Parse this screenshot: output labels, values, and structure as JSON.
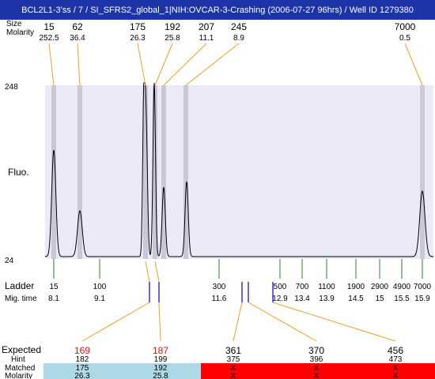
{
  "title": "BCL2L1-3'ss / 7 / SI_SFRS2_global_1|NIH:OVCAR-3-Crashing (2006-07-27 96hrs) / Well ID 1279380",
  "colors": {
    "title_bg": "#1d34a8",
    "plot_bg": "#eceaf8",
    "band": "#c8c8d6",
    "trace": "#000000",
    "orange": "#f0a020",
    "green": "#2e7d32",
    "blue": "#0000cc",
    "red_text": "#e01010",
    "matched_bg": "#add8e6",
    "unmatched_bg": "#ff0000"
  },
  "peak_header": {
    "size_label": "Size",
    "molarity_label": "Molarity",
    "peaks": [
      {
        "size": "15",
        "molarity": "252.5"
      },
      {
        "size": "62",
        "molarity": "36.4"
      },
      {
        "size": "175",
        "molarity": "26.3"
      },
      {
        "size": "192",
        "molarity": "25.8"
      },
      {
        "size": "207",
        "molarity": "11.1"
      },
      {
        "size": "245",
        "molarity": "8.9"
      },
      {
        "size": "7000",
        "molarity": "0.5"
      }
    ]
  },
  "axis": {
    "y_top": "248",
    "y_bottom": "24",
    "y_label": "Fluo."
  },
  "ladder": {
    "label": "Ladder",
    "mig_label": "Mig. time",
    "items": [
      {
        "size": "15",
        "time": "8.1"
      },
      {
        "size": "100",
        "time": "9.1"
      },
      {
        "size": "300",
        "time": "11.6"
      },
      {
        "size": "500",
        "time": "12.9"
      },
      {
        "size": "700",
        "time": "13.4"
      },
      {
        "size": "1100",
        "time": "13.9"
      },
      {
        "size": "1900",
        "time": "14.5"
      },
      {
        "size": "2900",
        "time": "15"
      },
      {
        "size": "4900",
        "time": "15.5"
      },
      {
        "size": "7000",
        "time": "15.9"
      }
    ]
  },
  "expected": {
    "label": "Expected",
    "hint_label": "Hint",
    "matched_label": "Matched",
    "molarity_label": "Molarity",
    "items": [
      {
        "expected": "169",
        "hint": "182",
        "matched": "175",
        "molarity": "26.3",
        "is_matched": true
      },
      {
        "expected": "187",
        "hint": "199",
        "matched": "192",
        "molarity": "25.8",
        "is_matched": true
      },
      {
        "expected": "361",
        "hint": "375",
        "matched": "X",
        "molarity": "X",
        "is_matched": false
      },
      {
        "expected": "370",
        "hint": "396",
        "matched": "X",
        "molarity": "X",
        "is_matched": false
      },
      {
        "expected": "456",
        "hint": "473",
        "matched": "X",
        "molarity": "X",
        "is_matched": false
      }
    ]
  }
}
